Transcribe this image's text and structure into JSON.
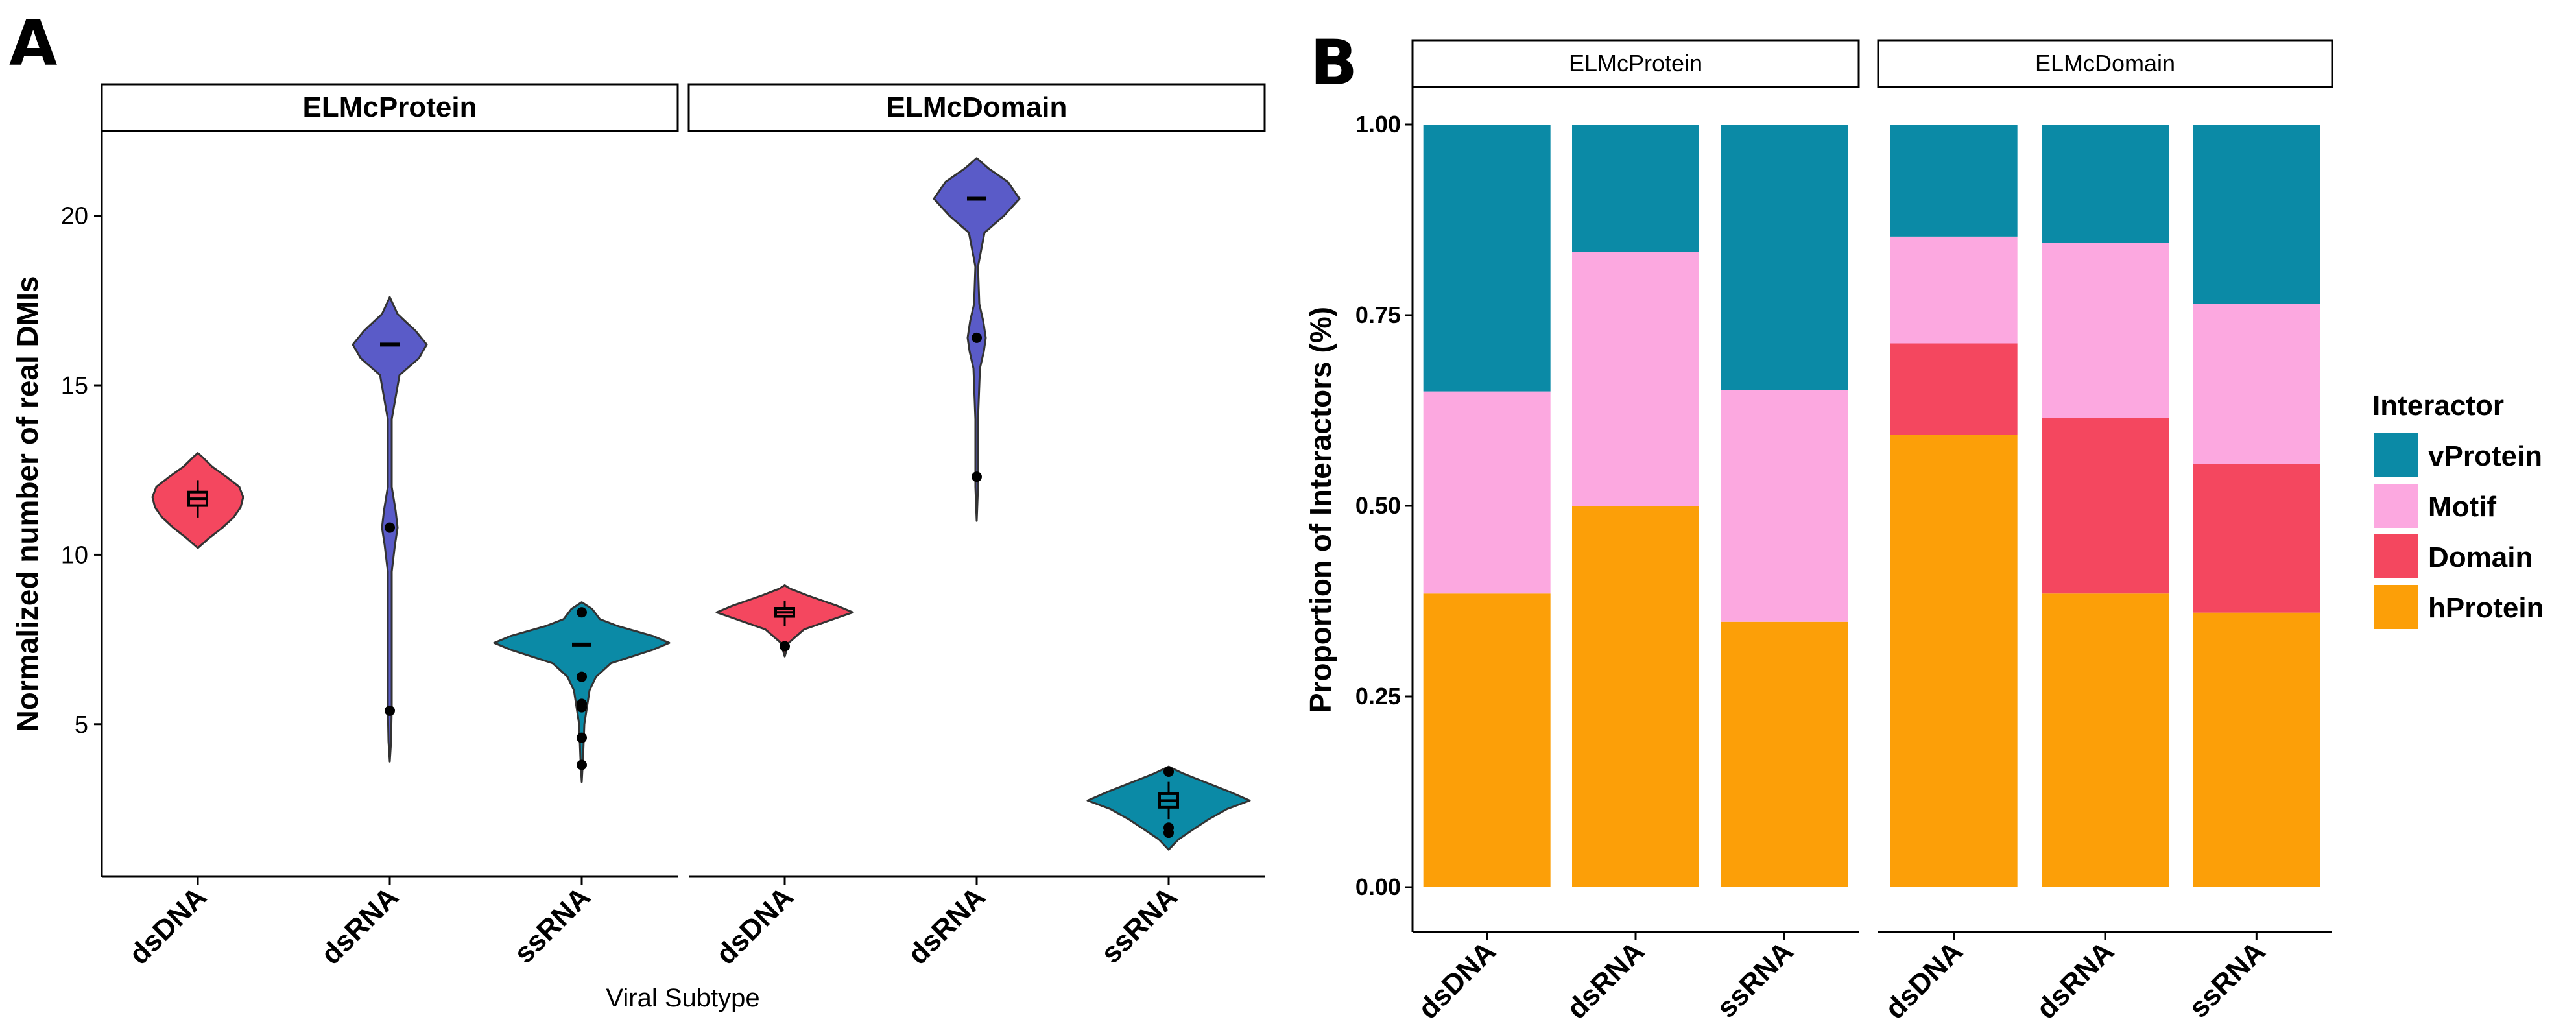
{
  "panel_a_letter": "A",
  "panel_b_letter": "B",
  "chart_data": [
    {
      "type": "violin",
      "panel": "A",
      "facets": [
        "ELMcProtein",
        "ELMcDomain"
      ],
      "categories": [
        "dsDNA",
        "dsRNA",
        "ssRNA"
      ],
      "xlabel": "Viral Subtype",
      "ylabel": "Normalized number of real DMIs",
      "yticks": [
        5,
        10,
        15,
        20
      ],
      "ylim": [
        0.5,
        22.5
      ],
      "colors": {
        "dsDNA": "#f4475f",
        "dsRNA": "#5a5bc8",
        "ssRNA": "#0b8aa6"
      },
      "violins": [
        {
          "facet": "ELMcProtein",
          "category": "dsDNA",
          "profile": [
            [
              10.2,
              0
            ],
            [
              10.5,
              18
            ],
            [
              10.8,
              38
            ],
            [
              11.1,
              55
            ],
            [
              11.4,
              66
            ],
            [
              11.7,
              70
            ],
            [
              12.0,
              64
            ],
            [
              12.3,
              44
            ],
            [
              12.6,
              22
            ],
            [
              12.9,
              6
            ],
            [
              13.0,
              0
            ]
          ],
          "box": {
            "q1": 11.45,
            "median": 11.65,
            "q3": 11.85,
            "whisker_low": 11.1,
            "whisker_high": 12.2
          },
          "points": [],
          "center_dash": null
        },
        {
          "facet": "ELMcProtein",
          "category": "dsRNA",
          "profile": [
            [
              3.9,
              0
            ],
            [
              4.5,
              2
            ],
            [
              5.5,
              3
            ],
            [
              7,
              3
            ],
            [
              9.5,
              3
            ],
            [
              10.3,
              8
            ],
            [
              10.8,
              12
            ],
            [
              11.3,
              9
            ],
            [
              12,
              3
            ],
            [
              14,
              3
            ],
            [
              15.3,
              15
            ],
            [
              15.8,
              45
            ],
            [
              16.2,
              57
            ],
            [
              16.6,
              40
            ],
            [
              17.1,
              12
            ],
            [
              17.6,
              0
            ]
          ],
          "box": null,
          "points": [
            5.4,
            10.8
          ],
          "center_dash": 16.2
        },
        {
          "facet": "ELMcProtein",
          "category": "ssRNA",
          "profile": [
            [
              3.3,
              0
            ],
            [
              4.0,
              2
            ],
            [
              5.0,
              4
            ],
            [
              5.5,
              8
            ],
            [
              6.0,
              12
            ],
            [
              6.4,
              22
            ],
            [
              6.8,
              45
            ],
            [
              7.2,
              110
            ],
            [
              7.4,
              135
            ],
            [
              7.6,
              110
            ],
            [
              7.9,
              55
            ],
            [
              8.1,
              28
            ],
            [
              8.4,
              16
            ],
            [
              8.6,
              0
            ]
          ],
          "box": null,
          "points": [
            3.8,
            4.6,
            5.5,
            5.6,
            6.4,
            8.3
          ],
          "center_dash": 7.35
        },
        {
          "facet": "ELMcDomain",
          "category": "dsDNA",
          "profile": [
            [
              7.0,
              0
            ],
            [
              7.4,
              6
            ],
            [
              7.8,
              30
            ],
            [
              8.1,
              75
            ],
            [
              8.3,
              105
            ],
            [
              8.5,
              80
            ],
            [
              8.8,
              35
            ],
            [
              9.0,
              8
            ],
            [
              9.1,
              0
            ]
          ],
          "box": {
            "q1": 8.18,
            "median": 8.3,
            "q3": 8.42,
            "whisker_low": 7.9,
            "whisker_high": 8.65
          },
          "points": [
            7.3
          ],
          "center_dash": null
        },
        {
          "facet": "ELMcDomain",
          "category": "dsRNA",
          "profile": [
            [
              11.0,
              0
            ],
            [
              12.0,
              2
            ],
            [
              14.0,
              2
            ],
            [
              15.5,
              5
            ],
            [
              16.0,
              11
            ],
            [
              16.4,
              14
            ],
            [
              16.9,
              10
            ],
            [
              17.4,
              4
            ],
            [
              18.5,
              2
            ],
            [
              19.5,
              12
            ],
            [
              20.0,
              42
            ],
            [
              20.5,
              66
            ],
            [
              21.0,
              48
            ],
            [
              21.4,
              18
            ],
            [
              21.7,
              0
            ]
          ],
          "box": null,
          "points": [
            12.3,
            16.4
          ],
          "center_dash": 20.5
        },
        {
          "facet": "ELMcDomain",
          "category": "ssRNA",
          "profile": [
            [
              1.3,
              0
            ],
            [
              1.6,
              15
            ],
            [
              1.9,
              38
            ],
            [
              2.2,
              62
            ],
            [
              2.5,
              90
            ],
            [
              2.75,
              125
            ],
            [
              3.0,
              95
            ],
            [
              3.3,
              55
            ],
            [
              3.55,
              22
            ],
            [
              3.75,
              0
            ]
          ],
          "box": {
            "q1": 2.55,
            "median": 2.75,
            "q3": 2.95,
            "whisker_low": 2.2,
            "whisker_high": 3.3
          },
          "points": [
            1.8,
            1.95,
            3.6
          ],
          "center_dash": null
        }
      ]
    },
    {
      "type": "stacked-bar",
      "panel": "B",
      "facets": [
        "ELMcProtein",
        "ELMcDomain"
      ],
      "categories": [
        "dsDNA",
        "dsRNA",
        "ssRNA"
      ],
      "xlabel": "",
      "ylabel": "Proportion of Interactors (%)",
      "yticks": [
        0,
        0.25,
        0.5,
        0.75,
        1.0
      ],
      "ytick_labels": [
        "0.00",
        "0.25",
        "0.50",
        "0.75",
        "1.00"
      ],
      "ylim": [
        0,
        1
      ],
      "legend_title": "Interactor",
      "series": [
        {
          "name": "vProtein",
          "color": "#0b8aa6"
        },
        {
          "name": "Motif",
          "color": "#fca8e0"
        },
        {
          "name": "Domain",
          "color": "#f4475f"
        },
        {
          "name": "hProtein",
          "color": "#fc9f08"
        }
      ],
      "stack_order": [
        "hProtein",
        "Domain",
        "Motif",
        "vProtein"
      ],
      "bars": [
        {
          "facet": "ELMcProtein",
          "category": "dsDNA",
          "hProtein": 0.385,
          "Domain": 0.0,
          "Motif": 0.265,
          "vProtein": 0.35
        },
        {
          "facet": "ELMcProtein",
          "category": "dsRNA",
          "hProtein": 0.5,
          "Domain": 0.0,
          "Motif": 0.333,
          "vProtein": 0.167
        },
        {
          "facet": "ELMcProtein",
          "category": "ssRNA",
          "hProtein": 0.348,
          "Domain": 0.0,
          "Motif": 0.304,
          "vProtein": 0.348
        },
        {
          "facet": "ELMcDomain",
          "category": "dsDNA",
          "hProtein": 0.593,
          "Domain": 0.12,
          "Motif": 0.14,
          "vProtein": 0.147
        },
        {
          "facet": "ELMcDomain",
          "category": "dsRNA",
          "hProtein": 0.385,
          "Domain": 0.23,
          "Motif": 0.23,
          "vProtein": 0.155
        },
        {
          "facet": "ELMcDomain",
          "category": "ssRNA",
          "hProtein": 0.36,
          "Domain": 0.195,
          "Motif": 0.21,
          "vProtein": 0.235
        }
      ]
    }
  ]
}
